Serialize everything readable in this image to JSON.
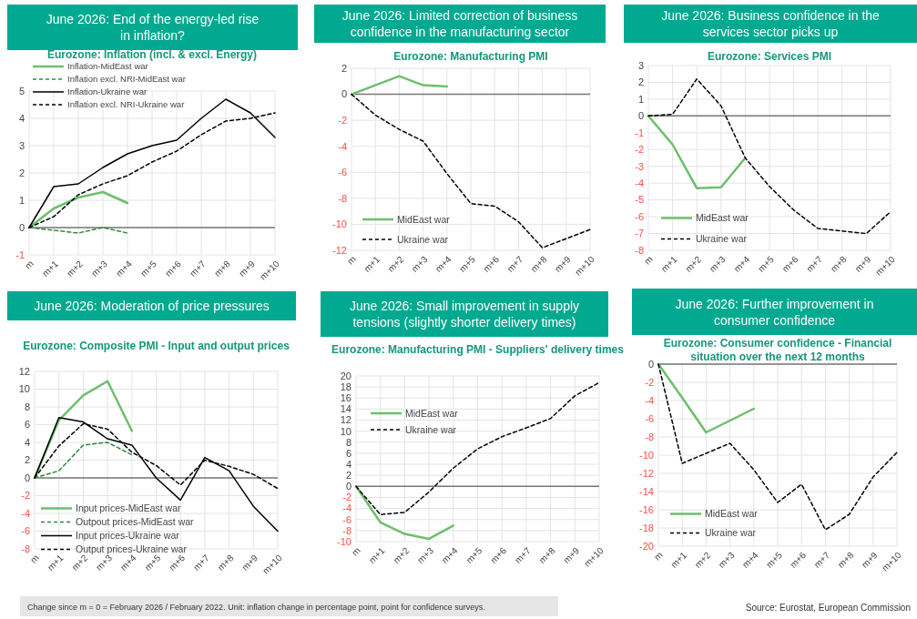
{
  "chart_data": [
    {
      "type": "line",
      "title": "June 2026: End of the energy-led rise in inflation?",
      "subtitle": "Eurozone: Inflation (incl. & excl. Energy)",
      "categories": [
        "m",
        "m+1",
        "m+2",
        "m+3",
        "m+4",
        "m+5",
        "m+6",
        "m+7",
        "m+8",
        "m+9",
        "m+10"
      ],
      "ylim": [
        -1,
        5
      ],
      "yticks": [
        -1,
        0,
        1,
        2,
        3,
        4,
        5
      ],
      "grid": true,
      "legend": "top left",
      "series": [
        {
          "name": "Inflation-MidEast war",
          "color": "#6cbf6c",
          "line_style": "solid",
          "values": [
            0,
            0.7,
            1.1,
            1.3,
            0.9,
            null,
            null,
            null,
            null,
            null,
            null
          ]
        },
        {
          "name": "Inflation excl. NRI-MidEast war",
          "color": "#2e8b3e",
          "line_style": "dashed",
          "values": [
            0,
            -0.1,
            -0.2,
            0,
            -0.2,
            null,
            null,
            null,
            null,
            null,
            null
          ]
        },
        {
          "name": "Inflation-Ukraine war",
          "color": "#000000",
          "line_style": "solid",
          "values": [
            0,
            1.5,
            1.6,
            2.2,
            2.7,
            3.0,
            3.2,
            4.0,
            4.7,
            4.2,
            3.3
          ]
        },
        {
          "name": "Inflation excl. NRI-Ukraine war",
          "color": "#000000",
          "line_style": "dashed",
          "values": [
            0,
            0.4,
            1.2,
            1.6,
            1.9,
            2.4,
            2.8,
            3.4,
            3.9,
            4.0,
            4.2
          ]
        }
      ]
    },
    {
      "type": "line",
      "title": "June 2026: Limited correction of business confidence in the manufacturing sector",
      "subtitle": "Eurozone: Manufacturing PMI",
      "categories": [
        "m",
        "m+1",
        "m+2",
        "m+3",
        "m+4",
        "m+5",
        "m+6",
        "m+7",
        "m+8",
        "m+9",
        "m+10"
      ],
      "ylim": [
        -12,
        2
      ],
      "yticks": [
        -12,
        -10,
        -8,
        -6,
        -4,
        -2,
        0,
        2
      ],
      "grid": true,
      "legend": "bottom left",
      "series": [
        {
          "name": "MidEast war",
          "color": "#6cbf6c",
          "line_style": "solid",
          "values": [
            0,
            0.7,
            1.4,
            0.7,
            0.6,
            null,
            null,
            null,
            null,
            null,
            null
          ]
        },
        {
          "name": "Ukraine war",
          "color": "#000000",
          "line_style": "dashed",
          "values": [
            0,
            -1.6,
            -2.7,
            -3.6,
            -6.1,
            -8.4,
            -8.6,
            -9.8,
            -11.8,
            -11.1,
            -10.4
          ]
        }
      ]
    },
    {
      "type": "line",
      "title": "June 2026: Business confidence in the services sector picks up",
      "subtitle": "Eurozone: Services PMI",
      "categories": [
        "m",
        "m+1",
        "m+2",
        "m+3",
        "m+4",
        "m+5",
        "m+6",
        "m+7",
        "m+8",
        "m+9",
        "m+10"
      ],
      "ylim": [
        -8,
        3
      ],
      "yticks": [
        -8,
        -7,
        -6,
        -5,
        -4,
        -3,
        -2,
        -1,
        0,
        1,
        2,
        3
      ],
      "grid": true,
      "legend": "bottom left",
      "series": [
        {
          "name": "MidEast war",
          "color": "#6cbf6c",
          "line_style": "solid",
          "values": [
            0,
            -1.7,
            -4.3,
            -4.25,
            -2.5,
            null,
            null,
            null,
            null,
            null,
            null
          ]
        },
        {
          "name": "Ukraine war",
          "color": "#000000",
          "line_style": "dashed",
          "values": [
            0,
            0.1,
            2.2,
            0.6,
            -2.5,
            -4.2,
            -5.6,
            -6.7,
            -6.85,
            -7,
            -5.7
          ]
        }
      ]
    },
    {
      "type": "line",
      "title": "June 2026: Moderation of price pressures",
      "subtitle": "Eurozone: Composite PMI - Input and output prices",
      "categories": [
        "m",
        "m+1",
        "m+2",
        "m+3",
        "m+4",
        "m+5",
        "m+6",
        "m+7",
        "m+8",
        "m+9",
        "m+10"
      ],
      "ylim": [
        -8,
        12
      ],
      "yticks": [
        -8,
        -6,
        -4,
        -2,
        0,
        2,
        4,
        6,
        8,
        10,
        12
      ],
      "grid": true,
      "legend": "bottom left",
      "annotations": [
        "Change since m = 0 = February 2026 / February 2022. Unit: inflation change in percentage point, point for confidence surveys."
      ],
      "series": [
        {
          "name": "Input prices-MidEast war",
          "color": "#6cbf6c",
          "line_style": "solid",
          "values": [
            0,
            6.5,
            9.3,
            10.9,
            5.3,
            null,
            null,
            null,
            null,
            null,
            null
          ]
        },
        {
          "name": "Outpout prices-MidEast war",
          "color": "#2e8b3e",
          "line_style": "dashed",
          "values": [
            0,
            0.8,
            3.7,
            4.0,
            2.6,
            null,
            null,
            null,
            null,
            null,
            null
          ]
        },
        {
          "name": "Input prices-Ukraine war",
          "color": "#000000",
          "line_style": "solid",
          "values": [
            0,
            6.8,
            6.3,
            4.4,
            3.7,
            0,
            -2.5,
            2.3,
            0.8,
            -3.2,
            -6
          ]
        },
        {
          "name": "Output prices-Ukraine war",
          "color": "#000000",
          "line_style": "dashed",
          "values": [
            0,
            3.6,
            6.1,
            5.5,
            2.9,
            1.4,
            -0.8,
            2.0,
            1.3,
            0.4,
            -1.2
          ]
        }
      ]
    },
    {
      "type": "line",
      "title": "June 2026: Small improvement in supply tensions (slightly shorter delivery times)",
      "subtitle": "Eurozone: Manufacturing PMI - Suppliers' delivery times",
      "categories": [
        "m",
        "m+1",
        "m+2",
        "m+3",
        "m+4",
        "m+5",
        "m+6",
        "m+7",
        "m+8",
        "m+9",
        "m+10"
      ],
      "ylim": [
        -10,
        20
      ],
      "yticks": [
        -10,
        -8,
        -6,
        -4,
        -2,
        0,
        2,
        4,
        6,
        8,
        10,
        12,
        14,
        16,
        18,
        20
      ],
      "grid": true,
      "legend": "top left",
      "series": [
        {
          "name": "MidEast war",
          "color": "#6cbf6c",
          "line_style": "solid",
          "values": [
            0,
            -6.5,
            -8.6,
            -9.5,
            -7.1,
            null,
            null,
            null,
            null,
            null,
            null
          ]
        },
        {
          "name": "Ukraine war",
          "color": "#000000",
          "line_style": "dashed",
          "values": [
            0,
            -5.1,
            -4.7,
            -1,
            3.3,
            6.8,
            9,
            10.6,
            12.3,
            16.4,
            18.8
          ]
        }
      ]
    },
    {
      "type": "line",
      "title": "June 2026: Further improvement in consumer confidence",
      "subtitle": "Eurozone: Consumer confidence - Financial situation over the next 12 months",
      "categories": [
        "m",
        "m+1",
        "m+2",
        "m+3",
        "m+4",
        "m+5",
        "m+6",
        "m+7",
        "m+8",
        "m+9",
        "m+10"
      ],
      "ylim": [
        -20,
        0
      ],
      "yticks": [
        -20,
        -18,
        -16,
        -14,
        -12,
        -10,
        -8,
        -6,
        -4,
        -2,
        0
      ],
      "grid": true,
      "legend": "bottom left",
      "annotations": [
        "Source: Eurostat, European Commission"
      ],
      "series": [
        {
          "name": "MidEast war",
          "color": "#6cbf6c",
          "line_style": "solid",
          "values": [
            0,
            -3.7,
            -7.5,
            -6.2,
            -4.9,
            null,
            null,
            null,
            null,
            null,
            null
          ]
        },
        {
          "name": "Ukraine war",
          "color": "#000000",
          "line_style": "dashed",
          "values": [
            0,
            -10.9,
            -9.8,
            -8.7,
            -11.6,
            -15.2,
            -13.2,
            -18.2,
            -16.5,
            -12.4,
            -9.7
          ]
        }
      ]
    }
  ]
}
